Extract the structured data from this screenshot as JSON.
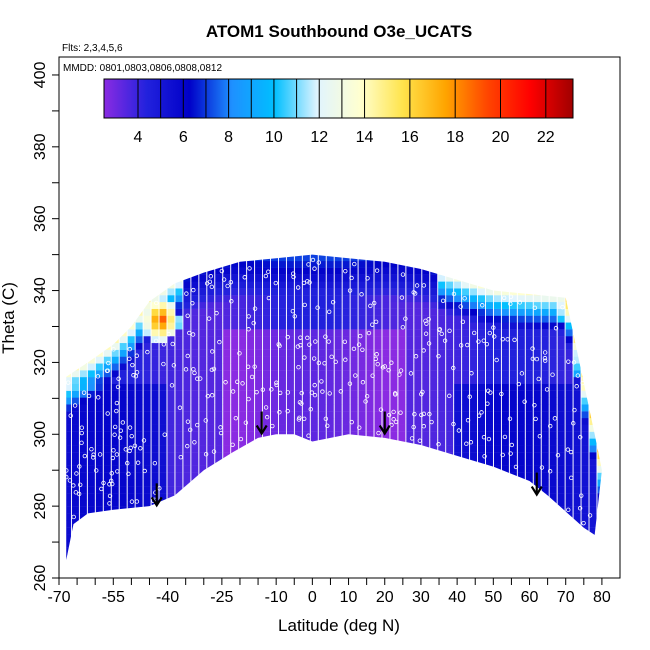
{
  "chart_data": {
    "type": "heatmap",
    "title": "ATOM1 Southbound O3e_UCATS",
    "flights_note": "Flts: 2,3,4,5,6",
    "dates_note": "MMDD: 0801,0803,0806,0808,0812",
    "xlabel": "Latitude (deg N)",
    "ylabel": "Theta (C)",
    "xlim": [
      -70,
      85
    ],
    "ylim": [
      260,
      405
    ],
    "x_tick_labels": [
      "-70",
      "-55",
      "-40",
      "-25",
      "-10",
      "0",
      "10",
      "20",
      "30",
      "40",
      "50",
      "60",
      "70",
      "80"
    ],
    "y_tick_labels": [
      "260",
      "280",
      "300",
      "320",
      "340",
      "360",
      "380",
      "400"
    ],
    "colorbar": {
      "range": [
        2.5,
        23.2
      ],
      "tick_labels": [
        "4",
        "6",
        "8",
        "10",
        "12",
        "14",
        "16",
        "18",
        "20",
        "22"
      ],
      "color_stops": [
        "#8a2be2",
        "#2222dd",
        "#0000c8",
        "#1e90ff",
        "#00bfff",
        "#e0f4ff",
        "#ffffd0",
        "#ffe44d",
        "#ffa500",
        "#ff4500",
        "#ff0000",
        "#a00000"
      ]
    },
    "field": {
      "lower_boundary": [
        [
          -68,
          265
        ],
        [
          -66,
          275
        ],
        [
          -62,
          278
        ],
        [
          -55,
          279
        ],
        [
          -45,
          280
        ],
        [
          -38,
          283
        ],
        [
          -30,
          290
        ],
        [
          -22,
          295
        ],
        [
          -15,
          299
        ],
        [
          -10,
          300
        ],
        [
          -5,
          300
        ],
        [
          0,
          298
        ],
        [
          5,
          299
        ],
        [
          10,
          300
        ],
        [
          20,
          299
        ],
        [
          30,
          297
        ],
        [
          40,
          294
        ],
        [
          50,
          291
        ],
        [
          60,
          287
        ],
        [
          65,
          283
        ],
        [
          75,
          274
        ],
        [
          78,
          272
        ]
      ],
      "upper_boundary": [
        [
          -68,
          316
        ],
        [
          -62,
          320
        ],
        [
          -55,
          325
        ],
        [
          -50,
          330
        ],
        [
          -45,
          337
        ],
        [
          -38,
          342
        ],
        [
          -30,
          345
        ],
        [
          -20,
          348
        ],
        [
          -10,
          349
        ],
        [
          0,
          350
        ],
        [
          10,
          349
        ],
        [
          20,
          348
        ],
        [
          30,
          346
        ],
        [
          40,
          343
        ],
        [
          50,
          340
        ],
        [
          60,
          339
        ],
        [
          70,
          338
        ],
        [
          78,
          300
        ],
        [
          80,
          290
        ]
      ],
      "high_ozone_patches": [
        {
          "lat": -42,
          "theta": 332,
          "o3": 20
        },
        {
          "lat": 72,
          "theta": 336,
          "o3": 17
        },
        {
          "lat": 76,
          "theta": 322,
          "o3": 16
        }
      ],
      "background_o3": 4
    },
    "tropopause_arrows": [
      {
        "lat": -43,
        "theta": 283
      },
      {
        "lat": -14,
        "theta": 303
      },
      {
        "lat": 20,
        "theta": 303
      },
      {
        "lat": 62,
        "theta": 286
      }
    ],
    "grid": false,
    "legend": "colorbar-top-inside"
  }
}
